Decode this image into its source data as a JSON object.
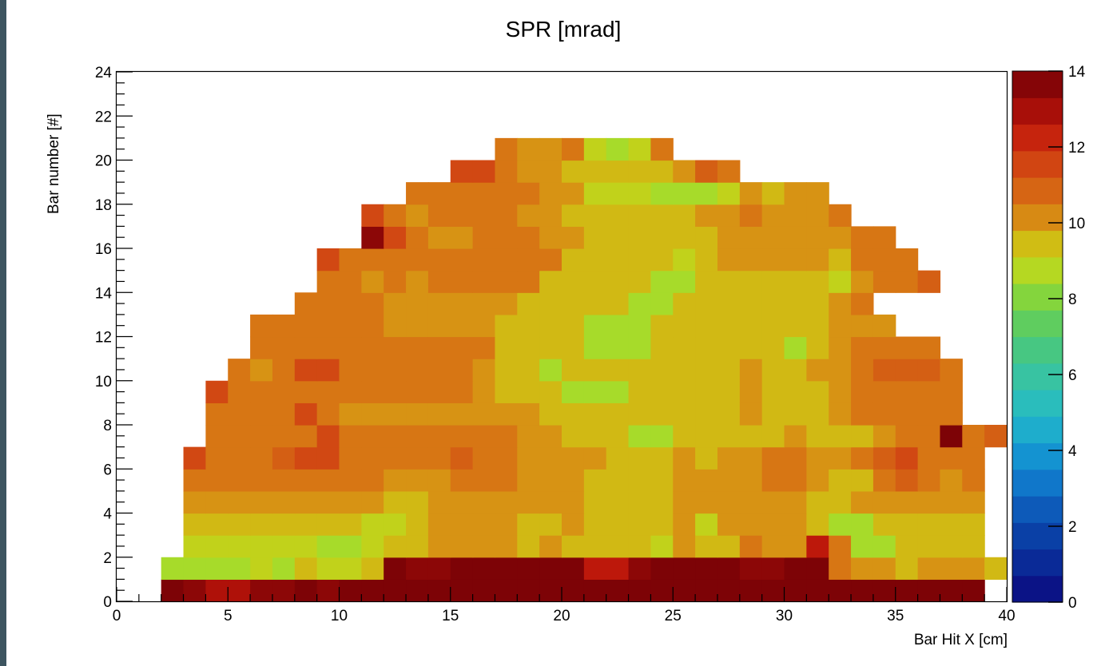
{
  "chart_data": {
    "type": "heatmap",
    "title": "SPR [mrad]",
    "xlabel": "Bar Hit X [cm]",
    "ylabel": "Bar number [#]",
    "xlim": [
      0,
      40
    ],
    "ylim": [
      0,
      24
    ],
    "x_ticks": [
      "0",
      "5",
      "10",
      "15",
      "20",
      "25",
      "30",
      "35",
      "40"
    ],
    "y_ticks": [
      "0",
      "2",
      "4",
      "6",
      "8",
      "10",
      "12",
      "14",
      "16",
      "18",
      "20",
      "22",
      "24"
    ],
    "colorbar_ticks": [
      "0",
      "2",
      "4",
      "6",
      "8",
      "10",
      "12",
      "14"
    ],
    "zlim": [
      0,
      14
    ],
    "bin_width_x": 1,
    "bin_width_y": 1,
    "row_x_start": [
      2,
      2,
      3,
      3,
      3,
      3,
      3,
      4,
      4,
      4,
      5,
      6,
      6,
      8,
      9,
      9,
      11,
      11,
      13,
      15,
      17
    ],
    "rows": [
      [
        13.8,
        13.5,
        12.8,
        12.8,
        13.5,
        13.5,
        13.8,
        13.5,
        13.8,
        13.8,
        13.8,
        13.8,
        13.8,
        13.8,
        13.8,
        13.8,
        13.8,
        13.8,
        13.8,
        13.8,
        13.8,
        13.8,
        13.8,
        13.8,
        13.8,
        13.8,
        13.8,
        13.8,
        13.8,
        13.8,
        13.8,
        13.8,
        13.8,
        13.8,
        13.8,
        13.8,
        13.8
      ],
      [
        8.5,
        8.5,
        8.5,
        8.5,
        9,
        8.5,
        9.5,
        9,
        9,
        9.5,
        13.8,
        13.5,
        13.5,
        13.8,
        13.8,
        13.8,
        13.8,
        13.8,
        13.8,
        12.5,
        12.5,
        13.5,
        13.8,
        13.8,
        13.8,
        13.8,
        13.5,
        13.5,
        13.8,
        13.8,
        10.5,
        10,
        10,
        9.5,
        10,
        10,
        10,
        9.5
      ],
      [
        9,
        9,
        9,
        9,
        9,
        9,
        8.5,
        8.5,
        9,
        9.5,
        9.5,
        10,
        10,
        10,
        10,
        9.5,
        10,
        9.5,
        9.5,
        9.5,
        9.5,
        9,
        10,
        9.5,
        9.5,
        10.5,
        10,
        10,
        12.5,
        10.5,
        8.5,
        8.5,
        9.5,
        9.5,
        9.5,
        9.5
      ],
      [
        9.5,
        9.5,
        9.5,
        9.5,
        9.5,
        9.5,
        9.5,
        9.5,
        9,
        9,
        9.5,
        10,
        10,
        10,
        10,
        9.5,
        9.5,
        10,
        9.5,
        9.5,
        9.5,
        9.5,
        10,
        9,
        10,
        10,
        10,
        10,
        9.5,
        8.5,
        8.5,
        9.5,
        9.5,
        9.5,
        9.5,
        9.5
      ],
      [
        10,
        10,
        10,
        10,
        10,
        10,
        10,
        10,
        10,
        9.5,
        9.5,
        10,
        10,
        10,
        10,
        10,
        10,
        10,
        9.5,
        9.5,
        9.5,
        9.5,
        10,
        10,
        10,
        10,
        10,
        10,
        9.5,
        9.5,
        10,
        10,
        10,
        10,
        10,
        10
      ],
      [
        10.5,
        10.5,
        10.5,
        10.5,
        10.5,
        10.5,
        10.5,
        10.5,
        10.5,
        10,
        10,
        10,
        10.5,
        10.5,
        10.5,
        10,
        10,
        10,
        9.5,
        9.5,
        9.5,
        9.5,
        10,
        10,
        10,
        10,
        10.5,
        10.5,
        10,
        9.5,
        9.5,
        10.5,
        11,
        10.5,
        10,
        10.5
      ],
      [
        11.5,
        10.5,
        10.5,
        10.5,
        11,
        11.5,
        11.5,
        10.5,
        10.5,
        10.5,
        10.5,
        10.5,
        11,
        10.5,
        10.5,
        10,
        10,
        10,
        10,
        9.5,
        9.5,
        9.5,
        10,
        9.5,
        10,
        10,
        10.5,
        10.5,
        10,
        10,
        10.5,
        11,
        11.5,
        10.5,
        10.5,
        10.5
      ],
      [
        10.5,
        10.5,
        10.5,
        10.5,
        10.5,
        11.5,
        10.5,
        10.5,
        10.5,
        10.5,
        10.5,
        10.5,
        10.5,
        10.5,
        10,
        10,
        9.5,
        9.5,
        9.5,
        8.5,
        8.5,
        9.5,
        9.5,
        9.5,
        9.5,
        9.5,
        10,
        9.5,
        9.5,
        9.5,
        10,
        10.5,
        10.5,
        13.8,
        10.5,
        11
      ],
      [
        10.5,
        10.5,
        10.5,
        10.5,
        11.5,
        10.5,
        10,
        10,
        10,
        10,
        10,
        10,
        10,
        10,
        10,
        9.5,
        9.5,
        9.5,
        9.5,
        9.5,
        9.5,
        9.5,
        9.5,
        9.5,
        10,
        9.5,
        9.5,
        9.5,
        10,
        10.5,
        10.5,
        10.5,
        10.5,
        10.5
      ],
      [
        11.5,
        10.5,
        10.5,
        10.5,
        10.5,
        10.5,
        10.5,
        10.5,
        10.5,
        10.5,
        10.5,
        10.5,
        10,
        9.5,
        9.5,
        9.5,
        8.5,
        8.5,
        8.5,
        9.5,
        9.5,
        9.5,
        9.5,
        9.5,
        10,
        9.5,
        9.5,
        9.5,
        10,
        10.5,
        10.5,
        10.5,
        10.5,
        10.5
      ],
      [
        10.5,
        10,
        10.5,
        11.5,
        11.5,
        10.5,
        10.5,
        10.5,
        10.5,
        10.5,
        10.5,
        10,
        9.5,
        9.5,
        8.5,
        9.5,
        9.5,
        9.5,
        9.5,
        9.5,
        9.5,
        9.5,
        9.5,
        10,
        9.5,
        9.5,
        10,
        10,
        10.5,
        11,
        11,
        11,
        10.5
      ],
      [
        10.5,
        10.5,
        10.5,
        10.5,
        10.5,
        10.5,
        10.5,
        10.5,
        10.5,
        10.5,
        10.5,
        9.5,
        9.5,
        9.5,
        9.5,
        8.5,
        8.5,
        8.5,
        9.5,
        9.5,
        9.5,
        9.5,
        9.5,
        9.5,
        8.5,
        9.5,
        10,
        10.5,
        10.5,
        10.5,
        10.5
      ],
      [
        10.5,
        10.5,
        10.5,
        10.5,
        10.5,
        10.5,
        10,
        10,
        10,
        10,
        10,
        9.5,
        9.5,
        9.5,
        9.5,
        8.5,
        8.5,
        8.5,
        9.5,
        9.5,
        9.5,
        9.5,
        9.5,
        9.5,
        9.5,
        9.5,
        10,
        10,
        10
      ],
      [
        10.5,
        10.5,
        10.5,
        10.5,
        10,
        10,
        10,
        10,
        10,
        10,
        9.5,
        9.5,
        9.5,
        9.5,
        9.5,
        8.5,
        8.5,
        9.5,
        9.5,
        9.5,
        9.5,
        9.5,
        9.5,
        9.5,
        10,
        10.5
      ],
      [
        10.5,
        10.5,
        10,
        10.5,
        10,
        10.5,
        10.5,
        10.5,
        10.5,
        10.5,
        9.5,
        9.5,
        9.5,
        9.5,
        9.5,
        8.5,
        8.5,
        9.5,
        9.5,
        9.5,
        9.5,
        9.5,
        9.5,
        9,
        10,
        10.5,
        10.5,
        11
      ],
      [
        11.5,
        10.5,
        10.5,
        10.5,
        10.5,
        10.5,
        10.5,
        10.5,
        10.5,
        10.5,
        10.5,
        9.5,
        9.5,
        9.5,
        9.5,
        9.5,
        9,
        9.5,
        10,
        10,
        10,
        10,
        10,
        9.5,
        10.5,
        10.5,
        10.5
      ],
      [
        13.5,
        11.5,
        10.5,
        10,
        10,
        10.5,
        10.5,
        10.5,
        10,
        10,
        9.5,
        9.5,
        9.5,
        9.5,
        9.5,
        9.5,
        10,
        10,
        10,
        10,
        10,
        10,
        10.5,
        10.5
      ],
      [
        11.5,
        10.5,
        10,
        10.5,
        10.5,
        10.5,
        10.5,
        10,
        10,
        9.5,
        9.5,
        9.5,
        9.5,
        9.5,
        9.5,
        10,
        10,
        10.5,
        10,
        10,
        10,
        10.5
      ],
      [
        10.5,
        10.5,
        10.5,
        10.5,
        10.5,
        10.5,
        10,
        10,
        9,
        9,
        9,
        8.5,
        8.5,
        8.5,
        9,
        10,
        9.5,
        10,
        10
      ],
      [
        11.5,
        11.5,
        10.5,
        10,
        10,
        9.5,
        9.5,
        9.5,
        9.5,
        9.5,
        10,
        11,
        10.5
      ],
      [
        10.5,
        10,
        10,
        10.5,
        9,
        8.5,
        9,
        10.5
      ]
    ]
  }
}
